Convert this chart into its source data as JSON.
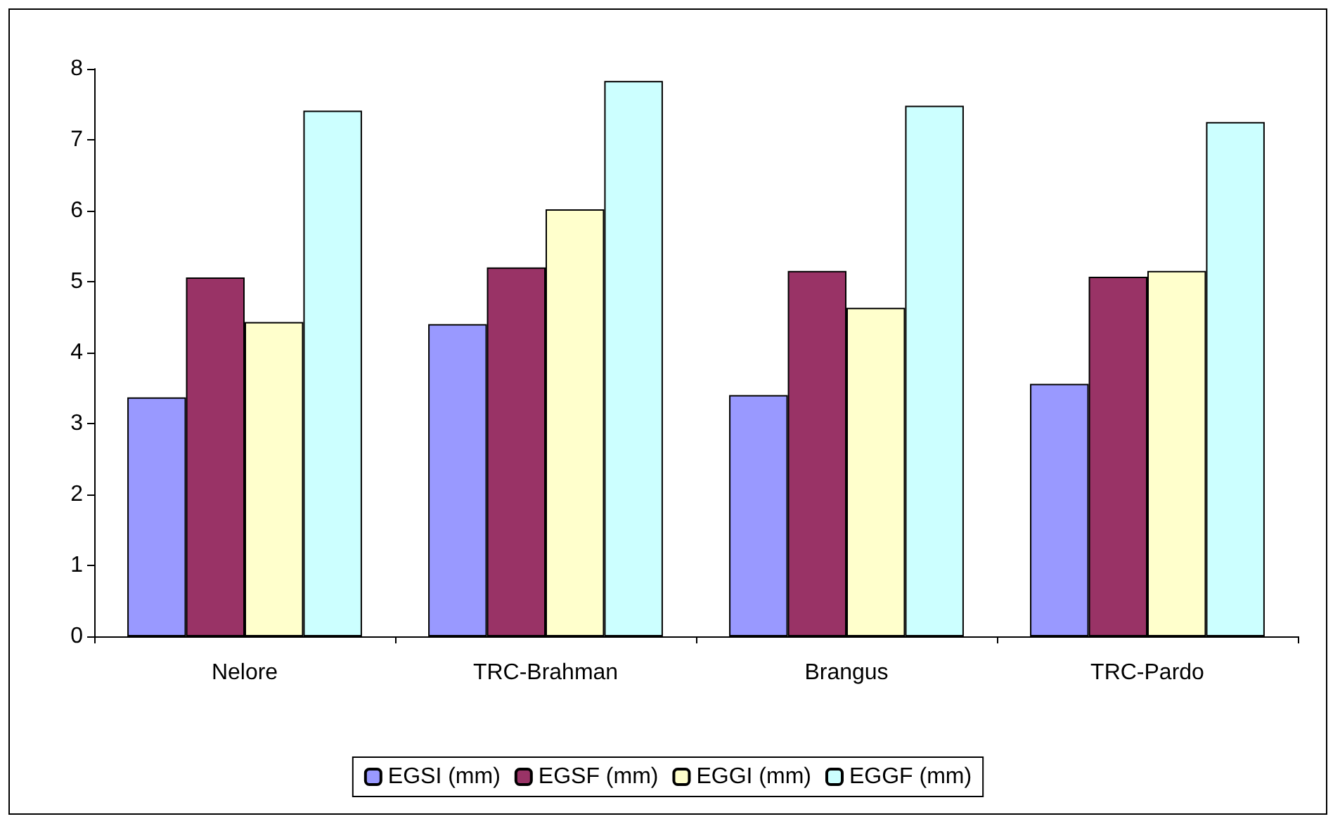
{
  "chart_data": {
    "type": "bar",
    "categories": [
      "Nelore",
      "TRC-Brahman",
      "Brangus",
      "TRC-Pardo"
    ],
    "series": [
      {
        "name": "EGSI (mm)",
        "color": "#9999ff",
        "values": [
          3.37,
          4.4,
          3.4,
          3.56
        ]
      },
      {
        "name": "EGSF (mm)",
        "color": "#993366",
        "values": [
          5.06,
          5.2,
          5.15,
          5.07
        ]
      },
      {
        "name": "EGGI (mm)",
        "color": "#ffffcc",
        "values": [
          4.43,
          6.02,
          4.63,
          5.15
        ]
      },
      {
        "name": "EGGF (mm)",
        "color": "#ccffff",
        "values": [
          7.41,
          7.83,
          7.48,
          7.25
        ]
      }
    ],
    "ylim": [
      0,
      8
    ],
    "yticks": [
      0,
      1,
      2,
      3,
      4,
      5,
      6,
      7,
      8
    ],
    "grid": false,
    "legend": "bottom"
  }
}
